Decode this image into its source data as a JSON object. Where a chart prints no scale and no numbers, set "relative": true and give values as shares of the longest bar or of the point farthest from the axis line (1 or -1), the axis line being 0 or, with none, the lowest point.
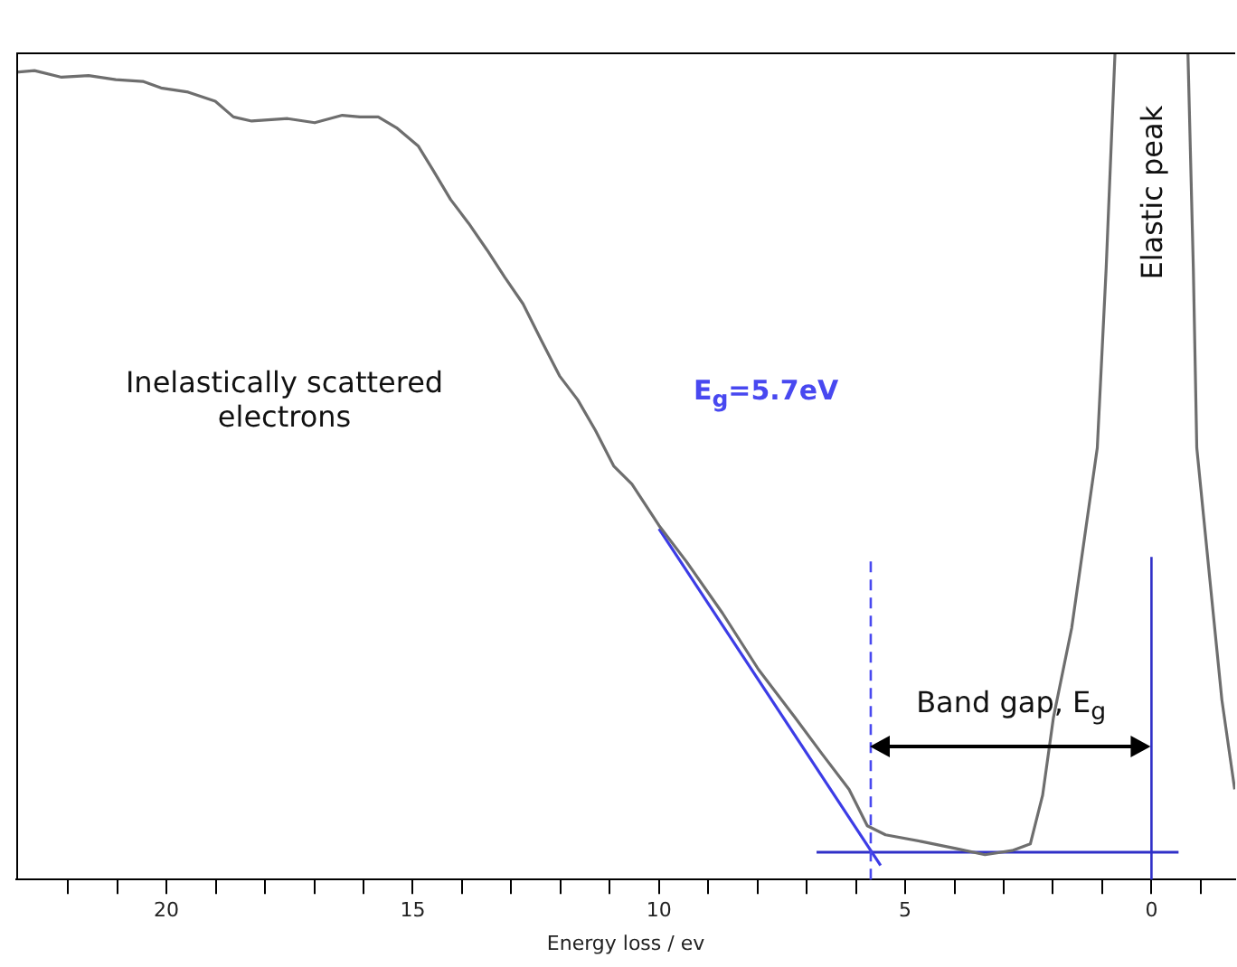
{
  "chart_data": {
    "type": "line",
    "relative": true,
    "xlabel": "Energy loss / ev",
    "xlim": [
      23.05,
      -1.7
    ],
    "xticks": [
      {
        "value": 22,
        "label": null
      },
      {
        "value": 21,
        "label": null
      },
      20,
      {
        "value": 19,
        "label": null
      },
      {
        "value": 18,
        "label": null
      },
      {
        "value": 17,
        "label": null
      },
      {
        "value": 16,
        "label": null
      },
      15,
      {
        "value": 14,
        "label": null
      },
      {
        "value": 13,
        "label": null
      },
      {
        "value": 12,
        "label": null
      },
      {
        "value": 11,
        "label": null
      },
      10,
      {
        "value": 9,
        "label": null
      },
      {
        "value": 8,
        "label": null
      },
      {
        "value": 7,
        "label": null
      },
      {
        "value": 6,
        "label": null
      },
      5,
      {
        "value": 4,
        "label": null
      },
      {
        "value": 3,
        "label": null
      },
      {
        "value": 2,
        "label": null
      },
      {
        "value": 1,
        "label": null
      },
      0,
      {
        "value": -1,
        "label": null
      }
    ],
    "series": [
      {
        "color": "#6e6e6e",
        "x": [
          23.05,
          22.68,
          22.13,
          21.58,
          21.03,
          20.48,
          20.11,
          19.56,
          19.01,
          18.64,
          18.27,
          17.54,
          16.99,
          16.43,
          16.07,
          15.7,
          15.33,
          14.89,
          14.6,
          14.23,
          13.86,
          13.49,
          13.13,
          12.76,
          12.39,
          12.02,
          11.65,
          11.29,
          10.92,
          10.55,
          10.0,
          9.45,
          8.71,
          7.98,
          7.24,
          6.69,
          6.14,
          5.77,
          5.4,
          4.67,
          3.93,
          3.38,
          2.83,
          2.46,
          2.21,
          1.99,
          1.62,
          1.36,
          1.1,
          0.92,
          0.74,
          0,
          -0.74,
          -0.85,
          -0.92,
          -1.21,
          -1.43,
          -1.69
        ],
        "values": [
          0.976,
          0.978,
          0.97,
          0.972,
          0.967,
          0.965,
          0.957,
          0.952,
          0.941,
          0.922,
          0.917,
          0.92,
          0.915,
          0.924,
          0.922,
          0.922,
          0.909,
          0.887,
          0.859,
          0.822,
          0.793,
          0.761,
          0.728,
          0.696,
          0.652,
          0.609,
          0.58,
          0.543,
          0.5,
          0.478,
          0.428,
          0.385,
          0.322,
          0.254,
          0.196,
          0.152,
          0.109,
          0.065,
          0.054,
          0.046,
          0.037,
          0.03,
          0.035,
          0.043,
          0.102,
          0.196,
          0.304,
          0.413,
          0.522,
          0.739,
          1.0,
          null,
          1.0,
          0.739,
          0.522,
          0.348,
          0.217,
          0.109
        ]
      },
      {
        "color": "#3c3ce6",
        "x": [
          10.0,
          5.5
        ],
        "values": [
          0.424,
          0.017
        ]
      },
      {
        "color": "#3030c8",
        "x": [
          6.8,
          -0.55
        ],
        "values": [
          0.033,
          0.033
        ]
      }
    ],
    "ref_lines": [
      {
        "axis": "x",
        "value": 5.7,
        "label": "E$_{g}$=5.7eV",
        "color": "#4848f0",
        "line_style": "dashed"
      },
      {
        "axis": "x",
        "value": 0,
        "color": "#3030c8",
        "line_style": "solid"
      }
    ],
    "annotations": [
      "Inelastically scattered electrons",
      "Band gap, E$_{g}$",
      "Elastic peak"
    ],
    "grid": false,
    "legend": false,
    "marker": "none",
    "line_style": "solid"
  }
}
